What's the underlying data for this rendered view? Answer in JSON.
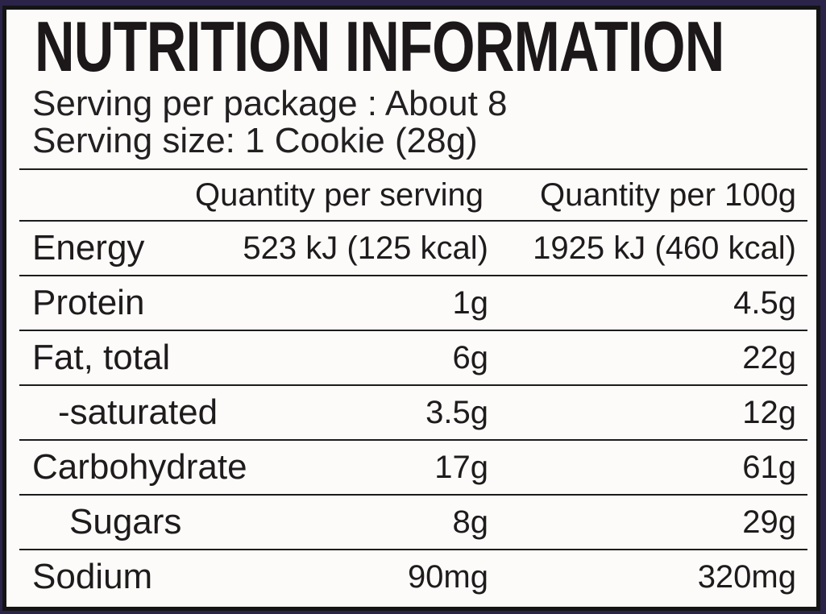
{
  "label": {
    "title": "NUTRITION INFORMATION",
    "serving_lines": [
      "Serving per package : About 8",
      "Serving size: 1 Cookie (28g)"
    ],
    "table": {
      "columns": [
        "",
        "Quantity per serving",
        "Quantity per 100g"
      ],
      "rows": [
        {
          "name": "Energy",
          "per_serving": "523 kJ (125 kcal)",
          "per_100g": "1925 kJ (460 kcal)",
          "indent": 0
        },
        {
          "name": "Protein",
          "per_serving": "1g",
          "per_100g": "4.5g",
          "indent": 0
        },
        {
          "name": "Fat, total",
          "per_serving": "6g",
          "per_100g": "22g",
          "indent": 0
        },
        {
          "name": "-saturated",
          "per_serving": "3.5g",
          "per_100g": "12g",
          "indent": 1
        },
        {
          "name": "Carbohydrate",
          "per_serving": "17g",
          "per_100g": "61g",
          "indent": 0
        },
        {
          "name": "Sugars",
          "per_serving": "8g",
          "per_100g": "29g",
          "indent": 2
        },
        {
          "name": "Sodium",
          "per_serving": "90mg",
          "per_100g": "320mg",
          "indent": 0
        }
      ]
    },
    "colors": {
      "surround": "#2b2348",
      "panel_background": "#fcfbf9",
      "border": "#141414",
      "text": "#1f1b1d"
    }
  }
}
